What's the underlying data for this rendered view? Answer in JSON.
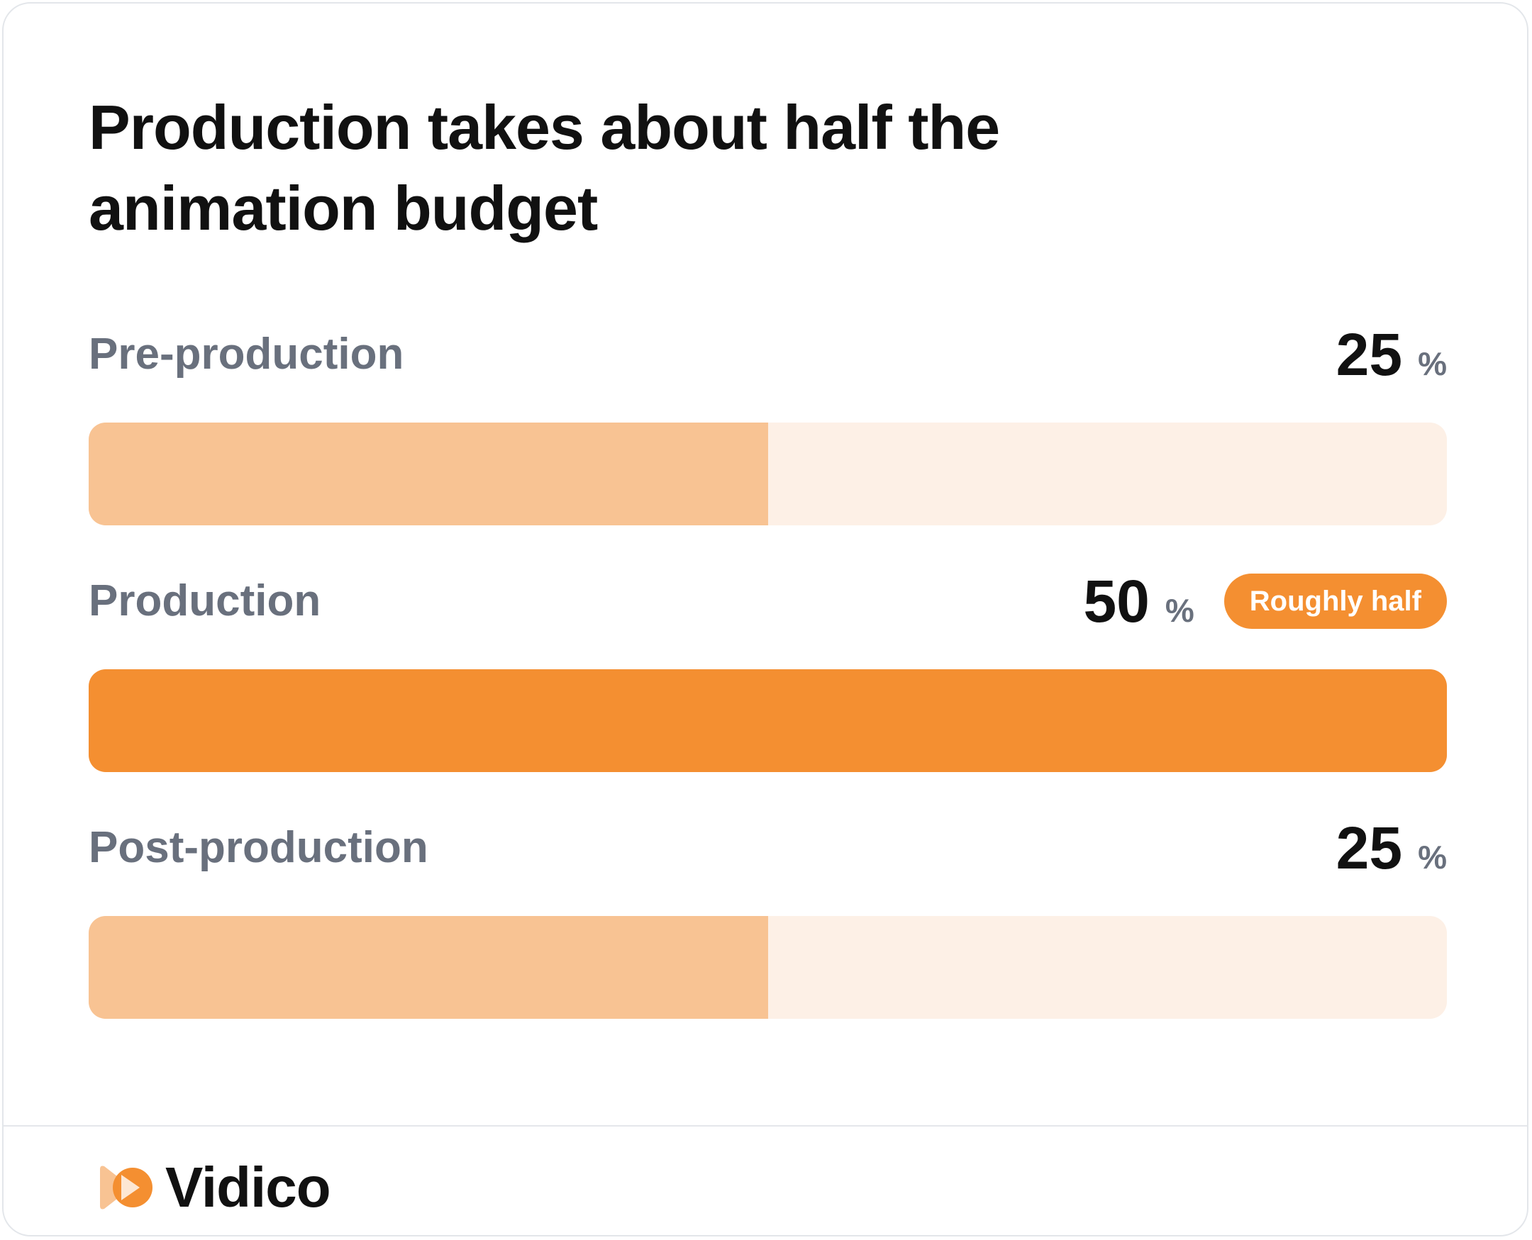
{
  "chart_data": {
    "type": "bar",
    "orientation": "horizontal",
    "title": "Production takes about half the animation budget",
    "categories": [
      "Pre-production",
      "Production",
      "Post-production"
    ],
    "values": [
      25,
      50,
      25
    ],
    "unit": "%",
    "xlim": [
      0,
      50
    ],
    "highlight": {
      "category": "Production",
      "label": "Roughly half"
    },
    "colors": {
      "track": "#fdf0e6",
      "fill": "#f8c393",
      "highlight": "#f48f31",
      "badge": "#f48f31"
    }
  },
  "brand": {
    "name": "Vidico",
    "logo_icon": "play-rewind-icon",
    "logo_colors": [
      "#f8c393",
      "#f48f31"
    ]
  }
}
